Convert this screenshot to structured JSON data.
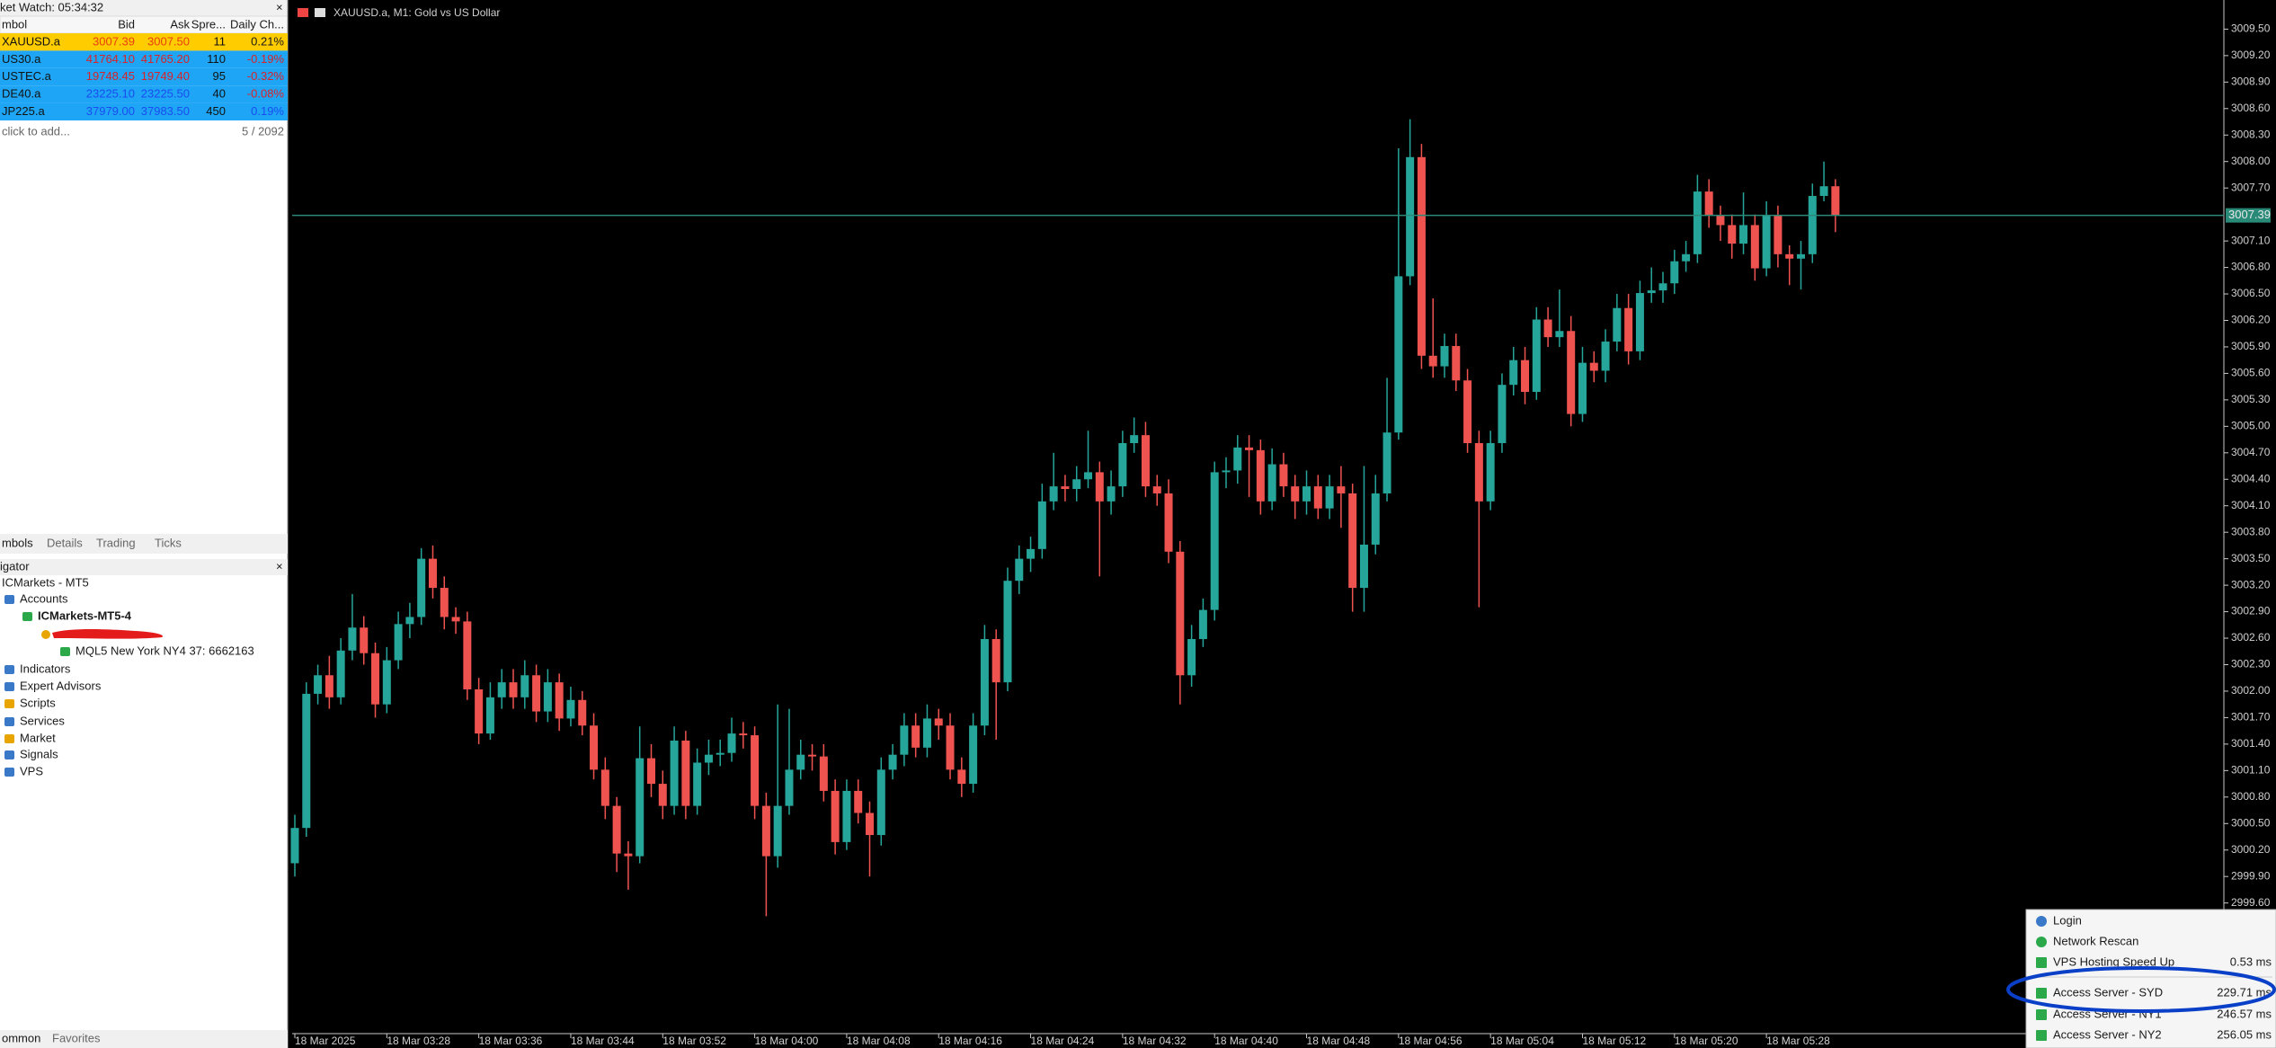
{
  "market_watch": {
    "title": "ket Watch: 05:34:32",
    "columns": [
      "mbol",
      "Bid",
      "Ask",
      "Spre...",
      "Daily Ch..."
    ],
    "rows": [
      [
        "XAUUSD.a",
        "3007.39",
        "3007.50",
        "11",
        "0.21%"
      ],
      [
        "US30.a",
        "41764.10",
        "41765.20",
        "110",
        "-0.19%"
      ],
      [
        "USTEC.a",
        "19748.45",
        "19749.40",
        "95",
        "-0.32%"
      ],
      [
        "DE40.a",
        "23225.10",
        "23225.50",
        "40",
        "-0.08%"
      ],
      [
        "JP225.a",
        "37979.00",
        "37983.50",
        "450",
        "0.19%"
      ]
    ],
    "add_hint": "click to add...",
    "count": "5 / 2092",
    "tabs": [
      "mbols",
      "Details",
      "Trading",
      "Ticks"
    ]
  },
  "navigator": {
    "title": "igator",
    "items": [
      "ICMarkets - MT5",
      "Accounts",
      "ICMarkets-MT5-4",
      "MQL5 New York NY4 37: 6662163",
      "Indicators",
      "Expert Advisors",
      "Scripts",
      "Services",
      "Market",
      "Signals",
      "VPS"
    ]
  },
  "bottom_tabs": [
    "ommon",
    "Favorites"
  ],
  "server_menu": {
    "items": [
      {
        "label": "Login"
      },
      {
        "label": "Network Rescan"
      },
      {
        "label": "VPS Hosting Speed Up",
        "ping": "0.53 ms"
      },
      {
        "label": "Access Server - SYD",
        "ping": "229.71 ms"
      },
      {
        "label": "Access Server - NY1",
        "ping": "246.57 ms"
      },
      {
        "label": "Access Server - NY2",
        "ping": "256.05 ms"
      }
    ]
  },
  "chart_data": {
    "type": "candlestick",
    "title": "XAUUSD.a, M1:  Gold vs US Dollar",
    "categories": [
      "18 Mar 2025",
      null,
      null,
      null,
      null,
      null,
      null,
      null,
      "18 Mar 03:28",
      null,
      null,
      null,
      null,
      null,
      null,
      null,
      "18 Mar 03:36",
      null,
      null,
      null,
      null,
      null,
      null,
      null,
      "18 Mar 03:44",
      null,
      null,
      null,
      null,
      null,
      null,
      null,
      "18 Mar 03:52",
      null,
      null,
      null,
      null,
      null,
      null,
      null,
      "18 Mar 04:00",
      null,
      null,
      null,
      null,
      null,
      null,
      null,
      "18 Mar 04:08",
      null,
      null,
      null,
      null,
      null,
      null,
      null,
      "18 Mar 04:16",
      null,
      null,
      null,
      null,
      null,
      null,
      null,
      "18 Mar 04:24",
      null,
      null,
      null,
      null,
      null,
      null,
      null,
      "18 Mar 04:32",
      null,
      null,
      null,
      null,
      null,
      null,
      null,
      "18 Mar 04:40",
      null,
      null,
      null,
      null,
      null,
      null,
      null,
      "18 Mar 04:48",
      null,
      null,
      null,
      null,
      null,
      null,
      null,
      "18 Mar 04:56",
      null,
      null,
      null,
      null,
      null,
      null,
      null,
      "18 Mar 05:04",
      null,
      null,
      null,
      null,
      null,
      null,
      null,
      "18 Mar 05:12",
      null,
      null,
      null,
      null,
      null,
      null,
      null,
      "18 Mar 05:20",
      null,
      null,
      null,
      null,
      null,
      null,
      null,
      "18 Mar 05:28",
      null,
      null,
      null,
      null,
      null,
      null
    ],
    "open": [
      3000.05,
      3000.45,
      3001.97,
      3002.18,
      3001.93,
      3002.46,
      3002.72,
      3002.43,
      3001.85,
      3002.35,
      3002.76,
      3002.84,
      3003.5,
      3003.17,
      3002.84,
      3002.79,
      3002.02,
      3001.52,
      3001.93,
      3002.1,
      3001.93,
      3002.18,
      3001.77,
      3002.1,
      3001.69,
      3001.9,
      3001.61,
      3001.11,
      3000.7,
      3000.16,
      3000.13,
      3001.24,
      3000.95,
      3000.7,
      3001.44,
      3000.7,
      3001.19,
      3001.28,
      3001.3,
      3001.52,
      3001.5,
      3000.7,
      3000.13,
      3000.7,
      3001.11,
      3001.28,
      3001.26,
      3000.87,
      3000.29,
      3000.87,
      3000.62,
      3000.37,
      3001.11,
      3001.28,
      3001.61,
      3001.36,
      3001.69,
      3001.61,
      3001.11,
      3000.95,
      3001.61,
      3002.59,
      3002.1,
      3003.25,
      3003.5,
      3003.61,
      3004.15,
      3004.32,
      3004.29,
      3004.4,
      3004.48,
      3004.15,
      3004.32,
      3004.81,
      3004.9,
      3004.32,
      3004.24,
      3003.58,
      3002.18,
      3002.59,
      3002.92,
      3004.48,
      3004.5,
      3004.76,
      3004.73,
      3004.15,
      3004.57,
      3004.32,
      3004.15,
      3004.32,
      3004.07,
      3004.32,
      3004.24,
      3003.17,
      3003.66,
      3004.24,
      3004.93,
      3006.7,
      3008.05,
      3005.8,
      3005.68,
      3005.91,
      3005.52,
      3004.81,
      3004.15,
      3004.81,
      3005.47,
      3005.75,
      3005.39,
      3006.21,
      3006.01,
      3006.08,
      3005.14,
      3005.72,
      3005.63,
      3005.96,
      3006.34,
      3005.85,
      3006.51,
      3006.54,
      3006.62,
      3006.87,
      3006.95,
      3007.66,
      3007.39,
      3007.28,
      3007.07,
      3007.28,
      3006.79,
      3007.39,
      3006.95,
      3006.9,
      3006.95,
      3007.61,
      3007.72
    ],
    "high": [
      3000.6,
      3002.1,
      3002.3,
      3002.4,
      3002.6,
      3003.1,
      3002.85,
      3002.55,
      3002.5,
      3002.9,
      3003.0,
      3003.62,
      3003.65,
      3003.3,
      3002.95,
      3002.9,
      3002.15,
      3002.1,
      3002.25,
      3002.25,
      3002.35,
      3002.3,
      3002.25,
      3002.2,
      3002.05,
      3002.0,
      3001.75,
      3001.25,
      3000.8,
      3000.3,
      3001.6,
      3001.4,
      3001.1,
      3001.6,
      3001.55,
      3001.35,
      3001.45,
      3001.45,
      3001.7,
      3001.65,
      3001.6,
      3000.85,
      3001.85,
      3001.8,
      3001.45,
      3001.4,
      3001.4,
      3001.0,
      3001.0,
      3001.0,
      3000.75,
      3001.25,
      3001.4,
      3001.75,
      3001.75,
      3001.85,
      3001.8,
      3001.75,
      3001.25,
      3001.75,
      3002.75,
      3002.7,
      3003.4,
      3003.65,
      3003.75,
      3004.35,
      3004.7,
      3004.45,
      3004.55,
      3004.95,
      3004.6,
      3004.5,
      3004.95,
      3005.1,
      3005.05,
      3004.45,
      3004.4,
      3003.7,
      3002.75,
      3003.05,
      3004.6,
      3004.65,
      3004.9,
      3004.9,
      3004.85,
      3004.75,
      3004.7,
      3004.45,
      3004.5,
      3004.45,
      3004.45,
      3004.55,
      3004.35,
      3004.55,
      3004.45,
      3005.55,
      3008.15,
      3008.48,
      3008.2,
      3006.45,
      3006.05,
      3006.05,
      3005.65,
      3004.95,
      3004.95,
      3005.6,
      3005.9,
      3005.9,
      3006.35,
      3006.35,
      3006.55,
      3006.25,
      3005.9,
      3005.85,
      3006.1,
      3006.5,
      3006.5,
      3006.65,
      3006.8,
      3006.75,
      3007.0,
      3007.1,
      3007.85,
      3007.8,
      3007.5,
      3007.4,
      3007.65,
      3007.4,
      3007.55,
      3007.5,
      3007.05,
      3007.1,
      3007.75,
      3008.0,
      3007.8
    ],
    "low": [
      2999.9,
      3000.35,
      3001.85,
      3001.8,
      3001.85,
      3002.35,
      3002.3,
      3001.7,
      3001.75,
      3002.25,
      3002.6,
      3002.75,
      3003.05,
      3002.7,
      3002.65,
      3001.9,
      3001.4,
      3001.45,
      3001.8,
      3001.8,
      3001.8,
      3001.65,
      3001.65,
      3001.55,
      3001.6,
      3001.5,
      3001.0,
      3000.55,
      2999.95,
      2999.75,
      3000.05,
      3000.8,
      3000.55,
      3000.6,
      3000.55,
      3000.6,
      3001.05,
      3001.15,
      3001.2,
      3001.35,
      3000.55,
      2999.45,
      3000.0,
      3000.6,
      3001.0,
      3001.1,
      3000.75,
      3000.15,
      3000.2,
      3000.5,
      2999.9,
      3000.25,
      3001.0,
      3001.15,
      3001.25,
      3001.25,
      3001.45,
      3001.0,
      3000.8,
      3000.85,
      3001.5,
      3001.45,
      3002.0,
      3003.1,
      3003.35,
      3003.5,
      3004.05,
      3004.15,
      3004.15,
      3004.3,
      3003.3,
      3004.0,
      3004.2,
      3004.7,
      3004.2,
      3004.1,
      3003.45,
      3001.85,
      3002.05,
      3002.5,
      3002.8,
      3004.3,
      3004.35,
      3004.2,
      3004.0,
      3004.05,
      3004.2,
      3003.95,
      3004.0,
      3003.95,
      3003.95,
      3003.85,
      3002.9,
      3002.9,
      3003.55,
      3004.15,
      3004.85,
      3006.6,
      3005.65,
      3005.55,
      3005.55,
      3005.4,
      3004.7,
      3002.95,
      3004.05,
      3004.7,
      3005.35,
      3005.25,
      3005.3,
      3005.9,
      3005.9,
      3005.0,
      3005.05,
      3005.5,
      3005.5,
      3005.85,
      3005.7,
      3005.75,
      3006.4,
      3006.4,
      3006.5,
      3006.75,
      3006.85,
      3007.25,
      3007.1,
      3006.9,
      3006.95,
      3006.65,
      3006.7,
      3006.8,
      3006.6,
      3006.55,
      3006.85,
      3007.55,
      3007.2
    ],
    "close": [
      3000.45,
      3001.97,
      3002.18,
      3001.93,
      3002.46,
      3002.72,
      3002.43,
      3001.85,
      3002.35,
      3002.76,
      3002.84,
      3003.5,
      3003.17,
      3002.84,
      3002.79,
      3002.02,
      3001.52,
      3001.93,
      3002.1,
      3001.93,
      3002.18,
      3001.77,
      3002.1,
      3001.69,
      3001.9,
      3001.61,
      3001.11,
      3000.7,
      3000.16,
      3000.13,
      3001.24,
      3000.95,
      3000.7,
      3001.44,
      3000.7,
      3001.19,
      3001.28,
      3001.3,
      3001.52,
      3001.5,
      3000.7,
      3000.13,
      3000.7,
      3001.11,
      3001.28,
      3001.26,
      3000.87,
      3000.29,
      3000.87,
      3000.62,
      3000.37,
      3001.11,
      3001.28,
      3001.61,
      3001.36,
      3001.69,
      3001.61,
      3001.11,
      3000.95,
      3001.61,
      3002.59,
      3002.1,
      3003.25,
      3003.5,
      3003.61,
      3004.15,
      3004.32,
      3004.29,
      3004.4,
      3004.48,
      3004.15,
      3004.32,
      3004.81,
      3004.9,
      3004.32,
      3004.24,
      3003.58,
      3002.18,
      3002.59,
      3002.92,
      3004.48,
      3004.5,
      3004.76,
      3004.73,
      3004.15,
      3004.57,
      3004.32,
      3004.15,
      3004.32,
      3004.07,
      3004.32,
      3004.24,
      3003.17,
      3003.66,
      3004.24,
      3004.93,
      3006.7,
      3008.05,
      3005.8,
      3005.68,
      3005.91,
      3005.52,
      3004.81,
      3004.15,
      3004.81,
      3005.47,
      3005.75,
      3005.39,
      3006.21,
      3006.01,
      3006.08,
      3005.14,
      3005.72,
      3005.63,
      3005.96,
      3006.34,
      3005.85,
      3006.51,
      3006.54,
      3006.62,
      3006.87,
      3006.95,
      3007.66,
      3007.39,
      3007.28,
      3007.07,
      3007.28,
      3006.79,
      3007.39,
      3006.95,
      3006.9,
      3006.95,
      3007.61,
      3007.72,
      3007.39
    ],
    "ylim": [
      2998.12,
      3009.83
    ],
    "yticks": [
      {
        "value": 3009.5,
        "label": "3009.50"
      },
      {
        "value": 3009.2,
        "label": "3009.20"
      },
      {
        "value": 3008.9,
        "label": "3008.90"
      },
      {
        "value": 3008.6,
        "label": "3008.60"
      },
      {
        "value": 3008.3,
        "label": "3008.30"
      },
      {
        "value": 3008.0,
        "label": "3008.00"
      },
      {
        "value": 3007.7,
        "label": "3007.70"
      },
      {
        "value": 3007.1,
        "label": "3007.10"
      },
      {
        "value": 3006.8,
        "label": "3006.80"
      },
      {
        "value": 3006.5,
        "label": "3006.50"
      },
      {
        "value": 3006.2,
        "label": "3006.20"
      },
      {
        "value": 3005.9,
        "label": "3005.90"
      },
      {
        "value": 3005.6,
        "label": "3005.60"
      },
      {
        "value": 3005.3,
        "label": "3005.30"
      },
      {
        "value": 3005.0,
        "label": "3005.00"
      },
      {
        "value": 3004.7,
        "label": "3004.70"
      },
      {
        "value": 3004.4,
        "label": "3004.40"
      },
      {
        "value": 3004.1,
        "label": "3004.10"
      },
      {
        "value": 3003.8,
        "label": "3003.80"
      },
      {
        "value": 3003.5,
        "label": "3003.50"
      },
      {
        "value": 3003.2,
        "label": "3003.20"
      },
      {
        "value": 3002.9,
        "label": "3002.90"
      },
      {
        "value": 3002.6,
        "label": "3002.60"
      },
      {
        "value": 3002.3,
        "label": "3002.30"
      },
      {
        "value": 3002.0,
        "label": "3002.00"
      },
      {
        "value": 3001.7,
        "label": "3001.70"
      },
      {
        "value": 3001.4,
        "label": "3001.40"
      },
      {
        "value": 3001.1,
        "label": "3001.10"
      },
      {
        "value": 3000.8,
        "label": "3000.80"
      },
      {
        "value": 3000.5,
        "label": "3000.50"
      },
      {
        "value": 3000.2,
        "label": "3000.20"
      },
      {
        "value": 2999.9,
        "label": "2999.90"
      },
      {
        "value": 2999.6,
        "label": "2999.60"
      }
    ],
    "bid_line": 3007.39,
    "up_color": "#26a69a",
    "down_color": "#ef5350",
    "bid_color": "#2a8a78",
    "grid": false
  }
}
